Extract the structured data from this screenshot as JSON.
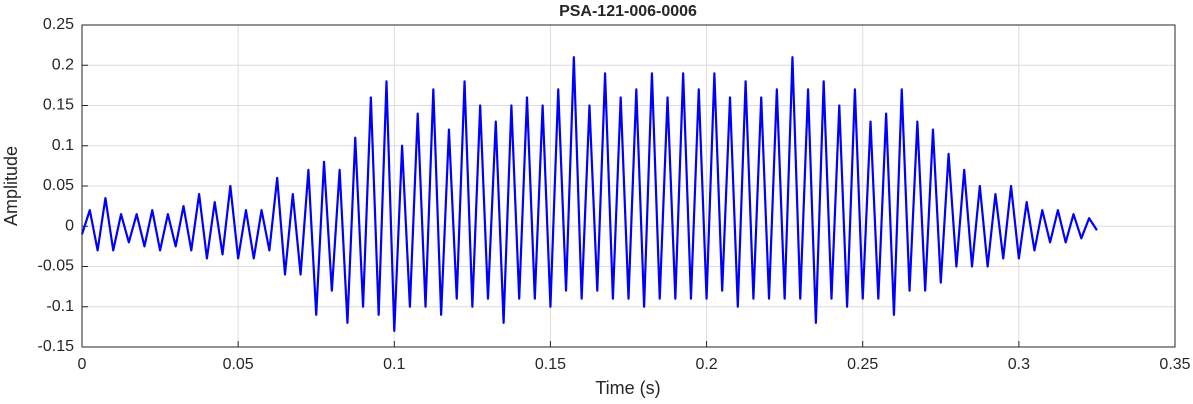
{
  "chart_data": {
    "type": "line",
    "title": "PSA-121-006-0006",
    "xlabel": "Time (s)",
    "ylabel": "Amplitude",
    "x": [
      0,
      0.0025,
      0.005,
      0.0075,
      0.01,
      0.0125,
      0.015,
      0.0175,
      0.02,
      0.0225,
      0.025,
      0.0275,
      0.03,
      0.0325,
      0.035,
      0.0375,
      0.04,
      0.0425,
      0.045,
      0.0475,
      0.05,
      0.0525,
      0.055,
      0.0575,
      0.06,
      0.0625,
      0.065,
      0.0675,
      0.07,
      0.0725,
      0.075,
      0.0775,
      0.08,
      0.0825,
      0.085,
      0.0875,
      0.09,
      0.0925,
      0.095,
      0.0975,
      0.1,
      0.1025,
      0.105,
      0.1075,
      0.11,
      0.1125,
      0.115,
      0.1175,
      0.12,
      0.1225,
      0.125,
      0.1275,
      0.13,
      0.1325,
      0.135,
      0.1375,
      0.14,
      0.1425,
      0.145,
      0.1475,
      0.15,
      0.1525,
      0.155,
      0.1575,
      0.16,
      0.1625,
      0.165,
      0.1675,
      0.17,
      0.1725,
      0.175,
      0.1775,
      0.18,
      0.1825,
      0.185,
      0.1875,
      0.19,
      0.1925,
      0.195,
      0.1975,
      0.2,
      0.2025,
      0.205,
      0.2075,
      0.21,
      0.2125,
      0.215,
      0.2175,
      0.22,
      0.2225,
      0.225,
      0.2275,
      0.23,
      0.2325,
      0.235,
      0.2375,
      0.24,
      0.2425,
      0.245,
      0.2475,
      0.25,
      0.2525,
      0.255,
      0.2575,
      0.26,
      0.2625,
      0.265,
      0.2675,
      0.27,
      0.2725,
      0.275,
      0.2775,
      0.28,
      0.2825,
      0.285,
      0.2875,
      0.29,
      0.2925,
      0.295,
      0.2975,
      0.3,
      0.3025,
      0.305,
      0.3075,
      0.31,
      0.3125,
      0.315,
      0.3175,
      0.32,
      0.3225,
      0.325
    ],
    "series": [
      {
        "name": "Amplitude",
        "color": "#0000ff",
        "values": [
          -0.01,
          0.02,
          -0.03,
          0.035,
          -0.03,
          0.015,
          -0.02,
          0.015,
          -0.025,
          0.02,
          -0.03,
          0.015,
          -0.025,
          0.025,
          -0.03,
          0.04,
          -0.04,
          0.03,
          -0.035,
          0.05,
          -0.04,
          0.02,
          -0.04,
          0.02,
          -0.03,
          0.06,
          -0.06,
          0.04,
          -0.06,
          0.07,
          -0.11,
          0.08,
          -0.08,
          0.07,
          -0.12,
          0.11,
          -0.1,
          0.16,
          -0.11,
          0.18,
          -0.13,
          0.1,
          -0.1,
          0.14,
          -0.1,
          0.17,
          -0.11,
          0.12,
          -0.09,
          0.18,
          -0.1,
          0.15,
          -0.09,
          0.13,
          -0.12,
          0.15,
          -0.09,
          0.16,
          -0.09,
          0.15,
          -0.1,
          0.17,
          -0.08,
          0.21,
          -0.09,
          0.15,
          -0.08,
          0.19,
          -0.09,
          0.16,
          -0.09,
          0.17,
          -0.1,
          0.19,
          -0.09,
          0.16,
          -0.09,
          0.19,
          -0.09,
          0.17,
          -0.09,
          0.19,
          -0.08,
          0.16,
          -0.1,
          0.18,
          -0.09,
          0.16,
          -0.09,
          0.17,
          -0.09,
          0.21,
          -0.09,
          0.17,
          -0.12,
          0.18,
          -0.09,
          0.15,
          -0.1,
          0.17,
          -0.09,
          0.13,
          -0.09,
          0.14,
          -0.11,
          0.17,
          -0.08,
          0.13,
          -0.08,
          0.12,
          -0.07,
          0.09,
          -0.05,
          0.07,
          -0.05,
          0.05,
          -0.05,
          0.04,
          -0.04,
          0.05,
          -0.04,
          0.03,
          -0.03,
          0.02,
          -0.02,
          0.02,
          -0.02,
          0.015,
          -0.015,
          0.01,
          -0.005
        ]
      }
    ],
    "xlim": [
      0,
      0.35
    ],
    "xticks": [
      0,
      0.05,
      0.1,
      0.15,
      0.2,
      0.25,
      0.3,
      0.35
    ],
    "ylim": [
      -0.15,
      0.25
    ],
    "yticks": [
      -0.15,
      -0.1,
      -0.05,
      0,
      0.05,
      0.1,
      0.15,
      0.2,
      0.25
    ],
    "grid": true
  }
}
